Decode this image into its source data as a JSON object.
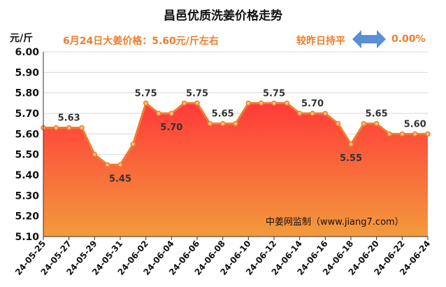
{
  "chart_data": {
    "type": "area",
    "title": "昌邑优质洗姜价格走势",
    "ylabel": "元/斤",
    "subtitle": "6月24日大姜价格：5.60元/斤左右",
    "status_text": "较昨日持平",
    "change_text": "0.00%",
    "watermark": "中姜网监制（www.jiang7.com）",
    "ylim": [
      5.1,
      6.0
    ],
    "yticks": [
      "6.00",
      "5.90",
      "5.80",
      "5.70",
      "5.60",
      "5.50",
      "5.40",
      "5.30",
      "5.20",
      "5.10"
    ],
    "xtick_labels": [
      "24-05-25",
      "24-05-27",
      "24-05-29",
      "24-05-31",
      "24-06-02",
      "24-06-04",
      "24-06-06",
      "24-06-08",
      "24-06-10",
      "24-06-12",
      "24-06-14",
      "24-06-16",
      "24-06-18",
      "24-06-20",
      "24-06-22",
      "24-06-24"
    ],
    "x": [
      "24-05-25",
      "24-05-26",
      "24-05-27",
      "24-05-28",
      "24-05-29",
      "24-05-30",
      "24-05-31",
      "24-06-01",
      "24-06-02",
      "24-06-03",
      "24-06-04",
      "24-06-05",
      "24-06-06",
      "24-06-07",
      "24-06-08",
      "24-06-09",
      "24-06-10",
      "24-06-11",
      "24-06-12",
      "24-06-13",
      "24-06-14",
      "24-06-15",
      "24-06-16",
      "24-06-17",
      "24-06-18",
      "24-06-19",
      "24-06-20",
      "24-06-21",
      "24-06-22",
      "24-06-23",
      "24-06-24"
    ],
    "values": [
      5.63,
      5.63,
      5.63,
      5.63,
      5.5,
      5.45,
      5.45,
      5.55,
      5.75,
      5.7,
      5.7,
      5.75,
      5.75,
      5.65,
      5.65,
      5.65,
      5.75,
      5.75,
      5.75,
      5.75,
      5.7,
      5.7,
      5.7,
      5.65,
      5.55,
      5.65,
      5.65,
      5.6,
      5.6,
      5.6,
      5.6
    ],
    "data_labels": [
      {
        "x": "24-05-27",
        "value": "5.63"
      },
      {
        "x": "24-05-31",
        "value": "5.45"
      },
      {
        "x": "24-06-02",
        "value": "5.75"
      },
      {
        "x": "24-06-04",
        "value": "5.70"
      },
      {
        "x": "24-06-06",
        "value": "5.75"
      },
      {
        "x": "24-06-08",
        "value": "5.65"
      },
      {
        "x": "24-06-12",
        "value": "5.75"
      },
      {
        "x": "24-06-15",
        "value": "5.70"
      },
      {
        "x": "24-06-18",
        "value": "5.55"
      },
      {
        "x": "24-06-20",
        "value": "5.65"
      },
      {
        "x": "24-06-23",
        "value": "5.60"
      }
    ],
    "grid": true,
    "colors": {
      "line": "#ef7d2d",
      "marker_fill": "#f6c17e",
      "area_top": "#ff3a3a",
      "area_bottom": "#f39a3c",
      "grid": "#d9d9d9",
      "axis": "#333333",
      "accent_text": "#ef7d2d",
      "arrow": "#5b8fd6"
    }
  }
}
